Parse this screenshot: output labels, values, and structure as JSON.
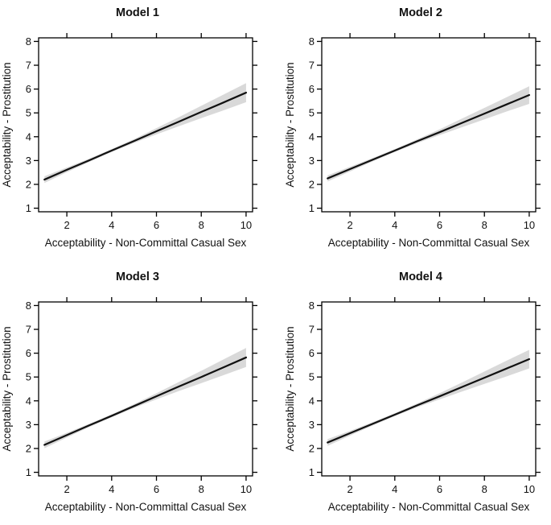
{
  "style": {
    "background": "#ffffff",
    "line_color": "#111111",
    "band_color": "#d9d9d9",
    "frame_color": "#000000",
    "text_color": "#111111"
  },
  "chart_data": [
    {
      "type": "line",
      "title": "Model 1",
      "xlabel": "Acceptability - Non-Committal Casual Sex",
      "ylabel": "Acceptability - Prostitution",
      "legend": "none",
      "grid": false,
      "axes": {
        "xlim": [
          0.74,
          10.29
        ],
        "ylim": [
          0.85,
          8.15
        ],
        "xticks": [
          2,
          4,
          6,
          8,
          10
        ],
        "yticks": [
          1,
          2,
          3,
          4,
          5,
          6,
          7,
          8
        ]
      },
      "x": [
        1,
        2,
        3,
        4,
        5,
        6,
        7,
        8,
        9,
        10
      ],
      "fit": [
        2.2,
        2.61,
        3.01,
        3.42,
        3.82,
        4.23,
        4.63,
        5.04,
        5.44,
        5.85
      ],
      "ci_upper": [
        2.34,
        2.71,
        3.08,
        3.48,
        3.9,
        4.36,
        4.82,
        5.3,
        5.77,
        6.25
      ],
      "ci_lower": [
        2.06,
        2.51,
        2.94,
        3.36,
        3.74,
        4.1,
        4.44,
        4.78,
        5.11,
        5.45
      ]
    },
    {
      "type": "line",
      "title": "Model 2",
      "xlabel": "Acceptability - Non-Committal Casual Sex",
      "ylabel": "Acceptability - Prostitution",
      "legend": "none",
      "grid": false,
      "axes": {
        "xlim": [
          0.74,
          10.29
        ],
        "ylim": [
          0.85,
          8.15
        ],
        "xticks": [
          2,
          4,
          6,
          8,
          10
        ],
        "yticks": [
          1,
          2,
          3,
          4,
          5,
          6,
          7,
          8
        ]
      },
      "x": [
        1,
        2,
        3,
        4,
        5,
        6,
        7,
        8,
        9,
        10
      ],
      "fit": [
        2.25,
        2.64,
        3.03,
        3.42,
        3.81,
        4.19,
        4.58,
        4.97,
        5.36,
        5.75
      ],
      "ci_upper": [
        2.38,
        2.74,
        3.1,
        3.48,
        3.89,
        4.31,
        4.76,
        5.21,
        5.66,
        6.12
      ],
      "ci_lower": [
        2.12,
        2.54,
        2.96,
        3.36,
        3.73,
        4.07,
        4.4,
        4.73,
        5.06,
        5.38
      ]
    },
    {
      "type": "line",
      "title": "Model 3",
      "xlabel": "Acceptability - Non-Committal Casual Sex",
      "ylabel": "Acceptability - Prostitution",
      "legend": "none",
      "grid": false,
      "axes": {
        "xlim": [
          0.74,
          10.29
        ],
        "ylim": [
          0.85,
          8.15
        ],
        "xticks": [
          2,
          4,
          6,
          8,
          10
        ],
        "yticks": [
          1,
          2,
          3,
          4,
          5,
          6,
          7,
          8
        ]
      },
      "x": [
        1,
        2,
        3,
        4,
        5,
        6,
        7,
        8,
        9,
        10
      ],
      "fit": [
        2.15,
        2.56,
        2.97,
        3.37,
        3.78,
        4.19,
        4.6,
        5.0,
        5.41,
        5.82
      ],
      "ci_upper": [
        2.29,
        2.66,
        3.04,
        3.43,
        3.86,
        4.32,
        4.79,
        5.26,
        5.74,
        6.22
      ],
      "ci_lower": [
        2.01,
        2.46,
        2.9,
        3.31,
        3.7,
        4.06,
        4.41,
        4.74,
        5.08,
        5.42
      ]
    },
    {
      "type": "line",
      "title": "Model 4",
      "xlabel": "Acceptability - Non-Committal Casual Sex",
      "ylabel": "Acceptability - Prostitution",
      "legend": "none",
      "grid": false,
      "axes": {
        "xlim": [
          0.74,
          10.29
        ],
        "ylim": [
          0.85,
          8.15
        ],
        "xticks": [
          2,
          4,
          6,
          8,
          10
        ],
        "yticks": [
          1,
          2,
          3,
          4,
          5,
          6,
          7,
          8
        ]
      },
      "x": [
        1,
        2,
        3,
        4,
        5,
        6,
        7,
        8,
        9,
        10
      ],
      "fit": [
        2.25,
        2.64,
        3.03,
        3.42,
        3.81,
        4.19,
        4.58,
        4.97,
        5.36,
        5.75
      ],
      "ci_upper": [
        2.39,
        2.74,
        3.1,
        3.48,
        3.89,
        4.32,
        4.77,
        5.23,
        5.69,
        6.14
      ],
      "ci_lower": [
        2.11,
        2.54,
        2.96,
        3.36,
        3.73,
        4.06,
        4.39,
        4.71,
        5.03,
        5.36
      ]
    }
  ]
}
